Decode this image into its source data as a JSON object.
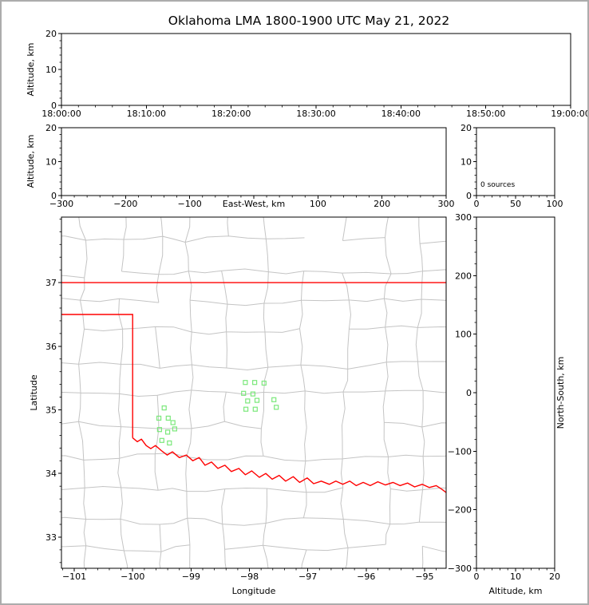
{
  "window": {
    "border_color": "#acacac",
    "background": "#ffffff"
  },
  "chart_data": {
    "type": "scatter",
    "title": "Oklahoma LMA 1800-1900 UTC May 21, 2022",
    "description": "Lightning Mapping Array multi-panel plot with zero sources plotted",
    "panels": {
      "time_height": {
        "ylabel": "Altitude, km",
        "ylim": [
          0,
          20
        ],
        "yticks": [
          0,
          10,
          20
        ],
        "xticks": [
          "18:00:00",
          "18:10:00",
          "18:20:00",
          "18:30:00",
          "18:40:00",
          "18:50:00",
          "19:00:00"
        ],
        "points": []
      },
      "ew_height": {
        "xlabel": "East-West, km",
        "ylabel": "Altitude, km",
        "xlim": [
          -300,
          300
        ],
        "xticks": [
          -300,
          -200,
          -100,
          0,
          100,
          200,
          300
        ],
        "zero_tick_label_hidden": true,
        "ylim": [
          0,
          20
        ],
        "yticks": [
          0,
          10,
          20
        ],
        "points": []
      },
      "source_histogram": {
        "annotation": "0 sources",
        "xlim": [
          0,
          100
        ],
        "xticks": [
          0,
          50,
          100
        ],
        "ylim": [
          0,
          20
        ],
        "yticks": [
          0,
          10,
          20
        ],
        "values": []
      },
      "map": {
        "xlabel": "Longitude",
        "ylabel": "Latitude",
        "xlim": [
          -101.22,
          -94.63
        ],
        "xticks": [
          -101,
          -100,
          -99,
          -98,
          -97,
          -96,
          -95
        ],
        "ylim": [
          32.51,
          38.03
        ],
        "yticks": [
          33,
          34,
          35,
          36,
          37
        ],
        "colors": {
          "state_border": "#ff0000",
          "county_lines": "#c4c4c4",
          "stations": "#7be87b"
        },
        "state_border": {
          "north": [
            [
              -101.22,
              37.0
            ],
            [
              -94.63,
              37.0
            ]
          ],
          "panhandle_and_west": [
            [
              -101.22,
              36.5
            ],
            [
              -100.0,
              36.5
            ],
            [
              -100.0,
              34.56
            ]
          ],
          "red_river_south": [
            [
              -100.0,
              34.56
            ],
            [
              -99.92,
              34.5
            ],
            [
              -99.85,
              34.54
            ],
            [
              -99.77,
              34.44
            ],
            [
              -99.69,
              34.39
            ],
            [
              -99.61,
              34.44
            ],
            [
              -99.51,
              34.36
            ],
            [
              -99.41,
              34.29
            ],
            [
              -99.32,
              34.34
            ],
            [
              -99.2,
              34.25
            ],
            [
              -99.08,
              34.29
            ],
            [
              -98.97,
              34.2
            ],
            [
              -98.86,
              34.25
            ],
            [
              -98.76,
              34.13
            ],
            [
              -98.65,
              34.18
            ],
            [
              -98.54,
              34.08
            ],
            [
              -98.42,
              34.13
            ],
            [
              -98.31,
              34.03
            ],
            [
              -98.18,
              34.08
            ],
            [
              -98.07,
              33.98
            ],
            [
              -97.96,
              34.04
            ],
            [
              -97.83,
              33.94
            ],
            [
              -97.72,
              34.0
            ],
            [
              -97.61,
              33.91
            ],
            [
              -97.49,
              33.97
            ],
            [
              -97.38,
              33.88
            ],
            [
              -97.25,
              33.95
            ],
            [
              -97.14,
              33.86
            ],
            [
              -97.01,
              33.93
            ],
            [
              -96.9,
              33.84
            ],
            [
              -96.77,
              33.88
            ],
            [
              -96.63,
              33.83
            ],
            [
              -96.52,
              33.88
            ],
            [
              -96.4,
              33.83
            ],
            [
              -96.28,
              33.88
            ],
            [
              -96.17,
              33.81
            ],
            [
              -96.05,
              33.86
            ],
            [
              -95.93,
              33.81
            ],
            [
              -95.8,
              33.87
            ],
            [
              -95.67,
              33.82
            ],
            [
              -95.54,
              33.86
            ],
            [
              -95.42,
              33.81
            ],
            [
              -95.29,
              33.85
            ],
            [
              -95.17,
              33.79
            ],
            [
              -95.04,
              33.83
            ],
            [
              -94.92,
              33.78
            ],
            [
              -94.8,
              33.81
            ],
            [
              -94.7,
              33.75
            ],
            [
              -94.63,
              33.7
            ]
          ]
        },
        "lma_stations": [
          [
            -98.07,
            35.43
          ],
          [
            -97.91,
            35.43
          ],
          [
            -97.75,
            35.42
          ],
          [
            -98.1,
            35.26
          ],
          [
            -97.94,
            35.25
          ],
          [
            -98.03,
            35.14
          ],
          [
            -97.87,
            35.15
          ],
          [
            -98.06,
            35.01
          ],
          [
            -97.9,
            35.01
          ],
          [
            -97.58,
            35.16
          ],
          [
            -97.54,
            35.04
          ],
          [
            -99.46,
            35.03
          ],
          [
            -99.55,
            34.87
          ],
          [
            -99.39,
            34.87
          ],
          [
            -99.31,
            34.8
          ],
          [
            -99.54,
            34.69
          ],
          [
            -99.4,
            34.65
          ],
          [
            -99.28,
            34.7
          ],
          [
            -99.5,
            34.52
          ],
          [
            -99.37,
            34.48
          ]
        ],
        "points": []
      },
      "ns_height": {
        "xlabel": "Altitude, km",
        "ylabel": "North-South, km",
        "xlim": [
          0,
          20
        ],
        "xticks": [
          0,
          10,
          20
        ],
        "ylim": [
          -300,
          300
        ],
        "yticks": [
          -300,
          -200,
          -100,
          0,
          100,
          200,
          300
        ],
        "points": []
      }
    }
  }
}
